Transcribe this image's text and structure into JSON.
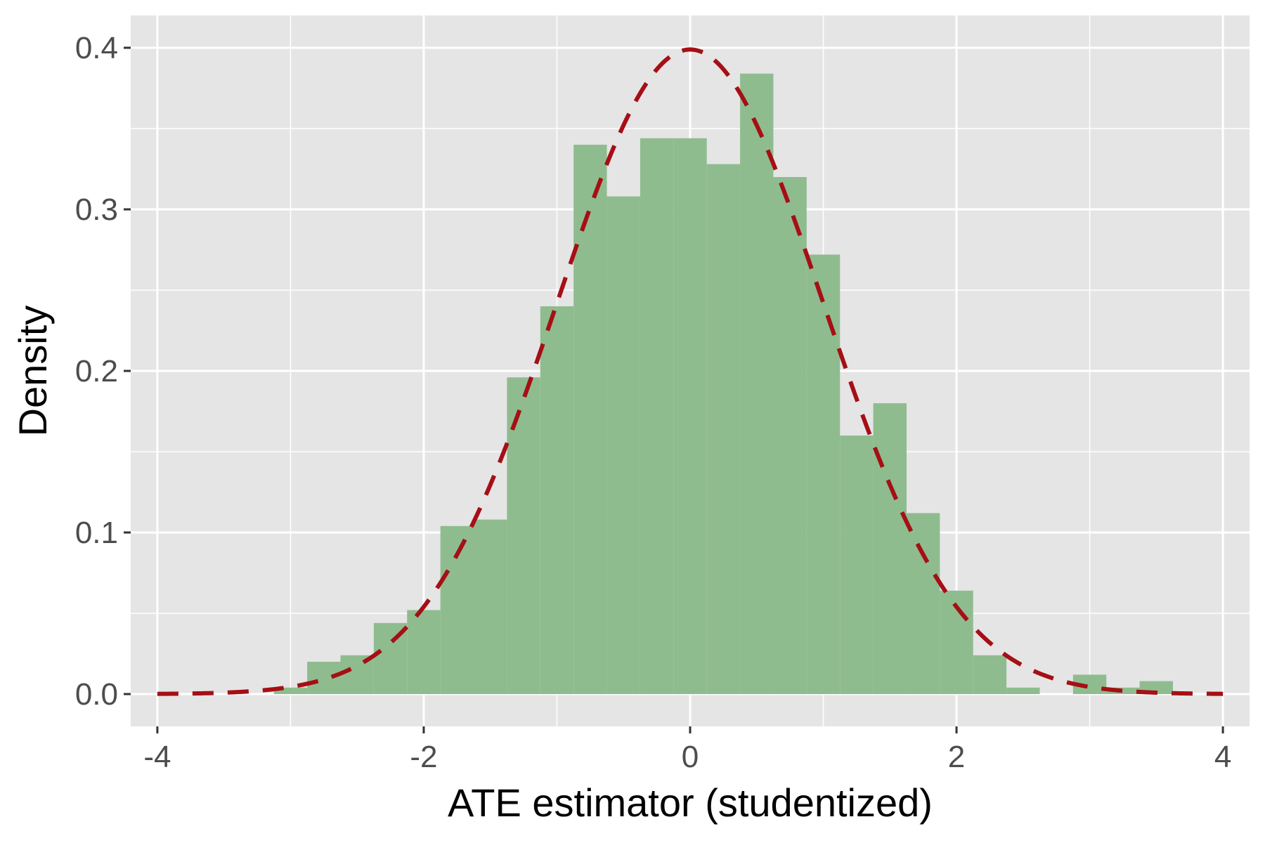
{
  "chart_data": {
    "type": "bar",
    "subtype": "histogram with overlaid standard normal density",
    "xlabel": "ATE estimator (studentized)",
    "ylabel": "Density",
    "xlim": [
      -4.2,
      4.2
    ],
    "ylim": [
      -0.02,
      0.42
    ],
    "x_ticks": [
      -4,
      -2,
      0,
      2,
      4
    ],
    "x_tick_labels": [
      "-4",
      "-2",
      "0",
      "2",
      "4"
    ],
    "y_ticks": [
      0.0,
      0.1,
      0.2,
      0.3,
      0.4
    ],
    "y_tick_labels": [
      "0.0",
      "0.1",
      "0.2",
      "0.3",
      "0.4"
    ],
    "grid": true,
    "bin_width": 0.25,
    "bins": [
      {
        "x0": -3.125,
        "x1": -2.875,
        "density": 0.004
      },
      {
        "x0": -2.875,
        "x1": -2.625,
        "density": 0.02
      },
      {
        "x0": -2.625,
        "x1": -2.375,
        "density": 0.024
      },
      {
        "x0": -2.375,
        "x1": -2.125,
        "density": 0.044
      },
      {
        "x0": -2.125,
        "x1": -1.875,
        "density": 0.052
      },
      {
        "x0": -1.875,
        "x1": -1.625,
        "density": 0.104
      },
      {
        "x0": -1.625,
        "x1": -1.375,
        "density": 0.108
      },
      {
        "x0": -1.375,
        "x1": -1.125,
        "density": 0.196
      },
      {
        "x0": -1.125,
        "x1": -0.875,
        "density": 0.24
      },
      {
        "x0": -0.875,
        "x1": -0.625,
        "density": 0.34
      },
      {
        "x0": -0.625,
        "x1": -0.375,
        "density": 0.308
      },
      {
        "x0": -0.375,
        "x1": -0.125,
        "density": 0.344
      },
      {
        "x0": -0.125,
        "x1": 0.125,
        "density": 0.344
      },
      {
        "x0": 0.125,
        "x1": 0.375,
        "density": 0.328
      },
      {
        "x0": 0.375,
        "x1": 0.625,
        "density": 0.384
      },
      {
        "x0": 0.625,
        "x1": 0.875,
        "density": 0.32
      },
      {
        "x0": 0.875,
        "x1": 1.125,
        "density": 0.272
      },
      {
        "x0": 1.125,
        "x1": 1.375,
        "density": 0.16
      },
      {
        "x0": 1.375,
        "x1": 1.625,
        "density": 0.18
      },
      {
        "x0": 1.625,
        "x1": 1.875,
        "density": 0.112
      },
      {
        "x0": 1.875,
        "x1": 2.125,
        "density": 0.064
      },
      {
        "x0": 2.125,
        "x1": 2.375,
        "density": 0.024
      },
      {
        "x0": 2.375,
        "x1": 2.625,
        "density": 0.004
      },
      {
        "x0": 2.625,
        "x1": 2.875,
        "density": 0.0
      },
      {
        "x0": 2.875,
        "x1": 3.125,
        "density": 0.012
      },
      {
        "x0": 3.125,
        "x1": 3.375,
        "density": 0.004
      },
      {
        "x0": 3.375,
        "x1": 3.625,
        "density": 0.008
      }
    ],
    "curve": {
      "distribution": "standard normal",
      "x_range": [
        -4,
        4
      ],
      "style": "dashed",
      "color": "#a50f15"
    },
    "colors": {
      "bar_fill": "#8fbc8f",
      "panel_background": "#e5e5e5",
      "grid_line": "#ffffff"
    }
  }
}
